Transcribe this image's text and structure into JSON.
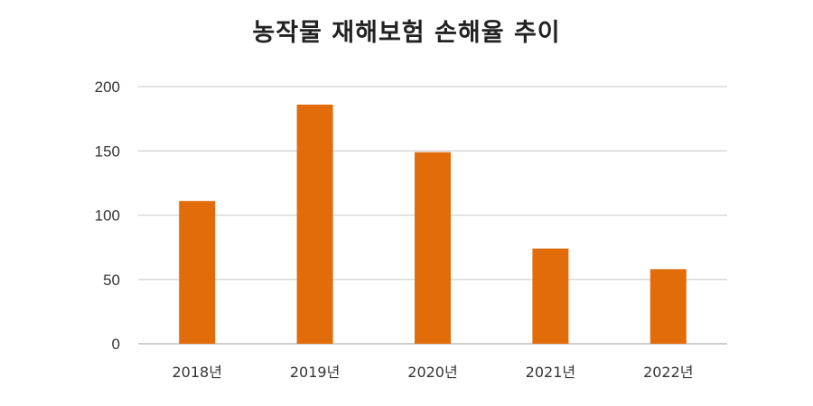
{
  "chart_data": {
    "type": "bar",
    "title": "농작물 재해보험 손해율 추이",
    "categories": [
      "2018년",
      "2019년",
      "2020년",
      "2021년",
      "2022년"
    ],
    "values": [
      111,
      186,
      149,
      74,
      58
    ],
    "xlabel": "",
    "ylabel": "",
    "ylim": [
      0,
      200
    ],
    "yticks": [
      0,
      50,
      100,
      150,
      200
    ],
    "grid": true,
    "legend": "none",
    "bar_color": "#E36C0A",
    "grid_color": "#d9d9d9",
    "axis_color": "#bfbfbf"
  }
}
